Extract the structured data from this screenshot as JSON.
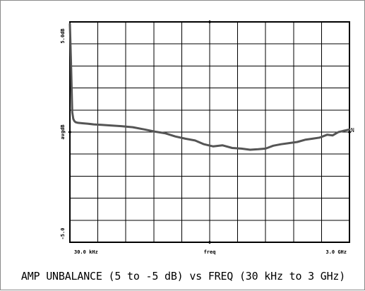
{
  "caption": "AMP UNBALANCE (5 to -5 dB) vs FREQ (30 kHz to 3 GHz)",
  "chart_data": {
    "type": "line",
    "title": "AMP UNBALANCE (5 to -5 dB) vs FREQ (30 kHz to 3 GHz)",
    "xlabel": "freq",
    "ylabel": "",
    "x_tick_labels": [
      "30.0 kHz",
      "freq",
      "3.0 GHz"
    ],
    "y_tick_labels": [
      "5.0dB",
      "avgdB",
      "-5.0"
    ],
    "x_scale": "log",
    "xlim": [
      30000,
      3000000000
    ],
    "ylim": [
      -5,
      5
    ],
    "grid": true,
    "grid_divisions": {
      "x": 10,
      "y": 10
    },
    "marker_label": "N",
    "series": [
      {
        "color": "#555555",
        "x": [
          30000,
          31500,
          33000,
          34500,
          36000,
          38000,
          42000,
          50000,
          62000,
          80000,
          110000,
          160000,
          250000,
          400000,
          650000,
          1000000,
          1500000,
          2300000,
          3500000,
          5200000,
          7500000,
          11000000,
          16000000,
          24000000,
          35000000,
          50000000,
          70000000,
          95000000,
          130000000,
          180000000,
          250000000,
          350000000,
          480000000,
          650000000,
          880000000,
          1200000000,
          1500000000,
          1900000000,
          2300000000,
          2600000000,
          3000000000
        ],
        "y": [
          4.9,
          3.0,
          0.9,
          0.6,
          0.5,
          0.45,
          0.42,
          0.4,
          0.38,
          0.35,
          0.33,
          0.3,
          0.27,
          0.22,
          0.12,
          0.02,
          -0.05,
          -0.2,
          -0.3,
          -0.38,
          -0.55,
          -0.65,
          -0.6,
          -0.72,
          -0.75,
          -0.8,
          -0.78,
          -0.75,
          -0.62,
          -0.55,
          -0.5,
          -0.45,
          -0.35,
          -0.3,
          -0.25,
          -0.12,
          -0.15,
          0.0,
          0.05,
          0.08,
          0.12
        ]
      }
    ]
  }
}
